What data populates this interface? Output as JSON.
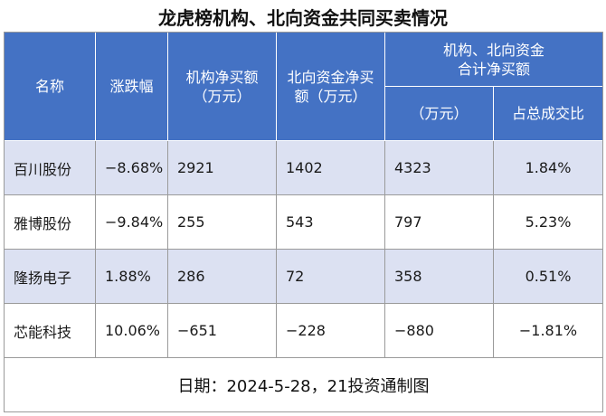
{
  "title": "龙虎榜机构、北向资金共同买卖情况",
  "headers": {
    "name": "名称",
    "change": "涨跌幅",
    "inst_line1": "机构净买额",
    "inst_line2": "（万元）",
    "north_line1": "北向资金净买",
    "north_line2": "额（万元）",
    "group_line1": "机构、北向资金",
    "group_line2": "合计净买额",
    "sum_unit": "（万元）",
    "ratio": "占总成交比"
  },
  "rows": [
    {
      "name": "百川股份",
      "change": "−8.68%",
      "inst": "2921",
      "north": "1402",
      "sum": "4323",
      "ratio": "1.84%"
    },
    {
      "name": "雅博股份",
      "change": "−9.84%",
      "inst": "255",
      "north": "543",
      "sum": "797",
      "ratio": "5.23%"
    },
    {
      "name": "隆扬电子",
      "change": "1.88%",
      "inst": "286",
      "north": "72",
      "sum": "358",
      "ratio": "0.51%"
    },
    {
      "name": "芯能科技",
      "change": "10.06%",
      "inst": "−651",
      "north": "−228",
      "sum": "−880",
      "ratio": "−1.81%"
    }
  ],
  "footer": "日期：2024-5-28，21投资通制图",
  "colors": {
    "header_bg": "#4472c4",
    "row_shade": "#dce1f2"
  }
}
